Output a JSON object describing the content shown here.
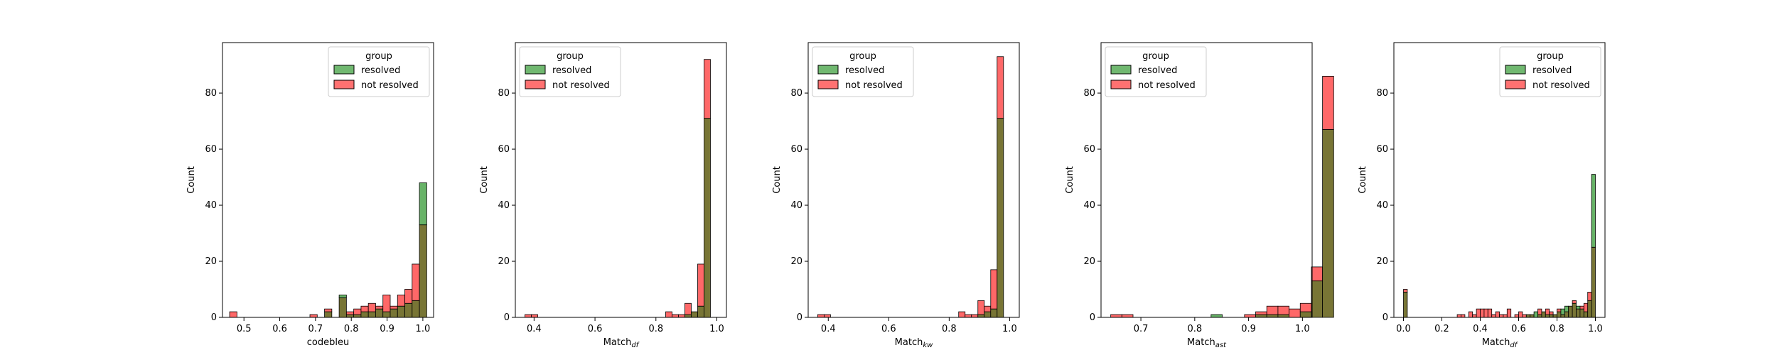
{
  "legend": {
    "title": "group",
    "entries": [
      "resolved",
      "not resolved"
    ]
  },
  "colors": {
    "resolved": "#4ca64c",
    "not_resolved": "#ff4d4d",
    "overlap": "#787535"
  },
  "chart_data": [
    {
      "type": "bar",
      "title": "",
      "xlabel": "codebleu",
      "ylabel": "Count",
      "xlim": [
        0.44,
        1.03
      ],
      "ylim": [
        0,
        98
      ],
      "xticks": [
        0.5,
        0.6,
        0.7,
        0.8,
        0.9,
        1.0
      ],
      "xtick_labels": [
        "0.5",
        "0.6",
        "0.7",
        "0.8",
        "0.9",
        "1.0"
      ],
      "yticks": [
        0,
        20,
        40,
        60,
        80
      ],
      "legend_position": "upper right",
      "bin_start": 0.46,
      "bin_width": 0.0204,
      "series": [
        {
          "name": "resolved",
          "values": [
            0,
            0,
            0,
            0,
            0,
            0,
            0,
            0,
            0,
            0,
            0,
            0,
            0,
            2,
            0,
            8,
            1,
            1,
            2,
            2,
            3,
            2,
            3,
            4,
            5,
            6,
            48
          ]
        },
        {
          "name": "not resolved",
          "values": [
            2,
            0,
            0,
            0,
            0,
            0,
            0,
            0,
            0,
            0,
            0,
            1,
            0,
            3,
            0,
            7,
            2,
            3,
            4,
            5,
            4,
            8,
            4,
            8,
            10,
            19,
            33
          ]
        }
      ]
    },
    {
      "type": "bar",
      "title": "",
      "xlabel": "Match",
      "xlabel_sub": "df",
      "ylabel": "Count",
      "xlim": [
        0.3385,
        1.0315
      ],
      "ylim": [
        0,
        98
      ],
      "xticks": [
        0.4,
        0.6,
        0.8,
        1.0
      ],
      "xtick_labels": [
        "0.4",
        "0.6",
        "0.8",
        "1.0"
      ],
      "yticks": [
        0,
        20,
        40,
        60,
        80
      ],
      "legend_position": "upper left",
      "bin_start": 0.37,
      "bin_width": 0.021,
      "series": [
        {
          "name": "resolved",
          "values": [
            0,
            0,
            0,
            0,
            0,
            0,
            0,
            0,
            0,
            0,
            0,
            0,
            0,
            0,
            0,
            0,
            0,
            0,
            0,
            0,
            0,
            0,
            0,
            0,
            0,
            1,
            2,
            4,
            71
          ]
        },
        {
          "name": "not resolved",
          "values": [
            1,
            1,
            0,
            0,
            0,
            0,
            0,
            0,
            0,
            0,
            0,
            0,
            0,
            0,
            0,
            0,
            0,
            0,
            0,
            0,
            0,
            0,
            2,
            1,
            1,
            5,
            2,
            19,
            92
          ]
        }
      ]
    },
    {
      "type": "bar",
      "title": "",
      "xlabel": "Match",
      "xlabel_sub": "kw",
      "ylabel": "Count",
      "xlim": [
        0.3335,
        1.032
      ],
      "ylim": [
        0,
        98
      ],
      "xticks": [
        0.4,
        0.6,
        0.8,
        1.0
      ],
      "xtick_labels": [
        "0.4",
        "0.6",
        "0.8",
        "1.0"
      ],
      "yticks": [
        0,
        20,
        40,
        60,
        80
      ],
      "legend_position": "upper left",
      "bin_start": 0.365,
      "bin_width": 0.0212,
      "series": [
        {
          "name": "resolved",
          "values": [
            0,
            0,
            0,
            0,
            0,
            0,
            0,
            0,
            0,
            0,
            0,
            0,
            0,
            0,
            0,
            0,
            0,
            0,
            0,
            0,
            0,
            0,
            0,
            0,
            0,
            1,
            2,
            3,
            71
          ]
        },
        {
          "name": "not resolved",
          "values": [
            1,
            1,
            0,
            0,
            0,
            0,
            0,
            0,
            0,
            0,
            0,
            0,
            0,
            0,
            0,
            0,
            0,
            0,
            0,
            0,
            0,
            0,
            2,
            1,
            1,
            6,
            4,
            17,
            93
          ]
        }
      ]
    },
    {
      "type": "bar",
      "title": "",
      "xlabel": "Match",
      "xlabel_sub": "ast",
      "ylabel": "Count",
      "xlim": [
        0.626,
        1.018
      ],
      "ylim": [
        0,
        98
      ],
      "xticks": [
        0.7,
        0.8,
        0.9,
        1.0
      ],
      "xtick_labels": [
        "0.7",
        "0.8",
        "0.9",
        "1.0"
      ],
      "yticks": [
        0,
        20,
        40,
        60,
        80
      ],
      "legend_position": "upper left",
      "bin_start": 0.644,
      "bin_width": 0.0207,
      "series": [
        {
          "name": "resolved",
          "values": [
            0,
            0,
            0,
            0,
            0,
            0,
            0,
            0,
            0,
            1,
            0,
            0,
            0,
            1,
            1,
            1,
            0,
            2,
            13,
            67
          ]
        },
        {
          "name": "not resolved",
          "values": [
            1,
            1,
            0,
            0,
            0,
            0,
            0,
            0,
            0,
            0,
            0,
            0,
            1,
            2,
            4,
            4,
            3,
            5,
            18,
            86
          ]
        }
      ]
    },
    {
      "type": "bar",
      "title": "",
      "xlabel": "Match",
      "xlabel_sub": "df",
      "ylabel": "Count",
      "xlim": [
        -0.05,
        1.05
      ],
      "ylim": [
        0,
        98
      ],
      "xticks": [
        0.0,
        0.2,
        0.4,
        0.6,
        0.8,
        1.0
      ],
      "xtick_labels": [
        "0.0",
        "0.2",
        "0.4",
        "0.6",
        "0.8",
        "1.0"
      ],
      "yticks": [
        0,
        20,
        40,
        60,
        80
      ],
      "legend_position": "upper right",
      "bin_start": 0.0,
      "bin_width": 0.02,
      "series": [
        {
          "name": "resolved",
          "values": [
            9,
            0,
            0,
            0,
            0,
            0,
            0,
            0,
            0,
            0,
            0,
            0,
            0,
            0,
            0,
            0,
            0,
            0,
            0,
            0,
            0,
            0,
            0,
            0,
            0,
            0,
            0,
            0,
            0,
            0,
            0,
            0,
            1,
            1,
            2,
            1,
            2,
            1,
            1,
            1,
            2,
            3,
            4,
            4,
            5,
            4,
            3,
            2,
            6,
            51
          ]
        },
        {
          "name": "not resolved",
          "values": [
            10,
            0,
            0,
            0,
            0,
            0,
            0,
            0,
            0,
            0,
            0,
            0,
            0,
            0,
            1,
            1,
            0,
            2,
            1,
            3,
            3,
            3,
            3,
            1,
            2,
            1,
            1,
            3,
            0,
            1,
            2,
            1,
            1,
            1,
            0,
            3,
            2,
            3,
            2,
            1,
            3,
            1,
            2,
            4,
            6,
            3,
            4,
            5,
            9,
            25
          ]
        }
      ]
    }
  ]
}
